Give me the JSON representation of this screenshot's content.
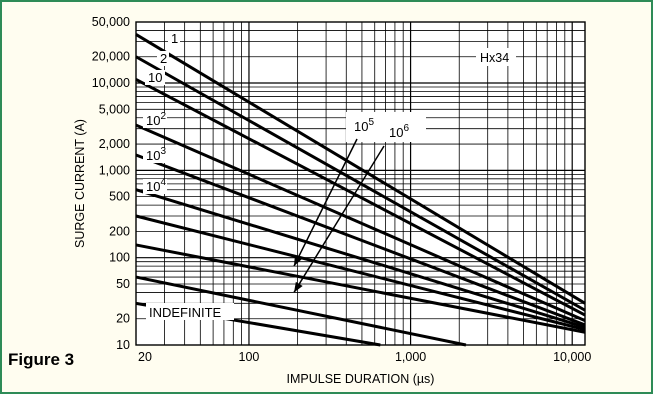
{
  "figure_label": "Figure 3",
  "chart_data": {
    "type": "line",
    "title": "",
    "model_label": "Hx34",
    "xlabel": "IMPULSE DURATION (µs)",
    "ylabel": "SURGE CURRENT (A)",
    "xscale": "log",
    "yscale": "log",
    "xlim": [
      20,
      12000
    ],
    "ylim": [
      10,
      50000
    ],
    "grid": true,
    "x_tick_labels": [
      {
        "value": 20,
        "label": "20"
      },
      {
        "value": 100,
        "label": "100"
      },
      {
        "value": 1000,
        "label": "1,000"
      },
      {
        "value": 10000,
        "label": "10,000"
      }
    ],
    "y_tick_labels": [
      {
        "value": 50000,
        "label": "50,000"
      },
      {
        "value": 20000,
        "label": "20,000"
      },
      {
        "value": 10000,
        "label": "10,000"
      },
      {
        "value": 5000,
        "label": "5,000"
      },
      {
        "value": 2000,
        "label": "2,000"
      },
      {
        "value": 1000,
        "label": "1,000"
      },
      {
        "value": 500,
        "label": "500"
      },
      {
        "value": 200,
        "label": "200"
      },
      {
        "value": 100,
        "label": "100"
      },
      {
        "value": 50,
        "label": "50"
      },
      {
        "value": 20,
        "label": "20"
      },
      {
        "value": 10,
        "label": "10"
      }
    ],
    "series": [
      {
        "label": "1",
        "points": [
          [
            20,
            36000
          ],
          [
            12000,
            30
          ]
        ]
      },
      {
        "label": "2",
        "points": [
          [
            20,
            20000
          ],
          [
            12000,
            25
          ]
        ]
      },
      {
        "label": "10",
        "points": [
          [
            20,
            11000
          ],
          [
            12000,
            22
          ]
        ]
      },
      {
        "label": "10",
        "label_exp": "2",
        "points": [
          [
            20,
            3300
          ],
          [
            12000,
            19
          ]
        ]
      },
      {
        "label": "10",
        "label_exp": "3",
        "points": [
          [
            20,
            1500
          ],
          [
            12000,
            17
          ]
        ]
      },
      {
        "label": "10",
        "label_exp": "4",
        "points": [
          [
            20,
            600
          ],
          [
            12000,
            16
          ]
        ]
      },
      {
        "label": "10",
        "label_exp": "5",
        "points": [
          [
            20,
            300
          ],
          [
            12000,
            15
          ]
        ]
      },
      {
        "label": "10",
        "label_exp": "6",
        "points": [
          [
            20,
            140
          ],
          [
            12000,
            14
          ]
        ]
      },
      {
        "label": "",
        "points": [
          [
            20,
            60
          ],
          [
            2200,
            10
          ]
        ]
      },
      {
        "label": "INDEFINITE",
        "points": [
          [
            20,
            30
          ],
          [
            650,
            10
          ]
        ]
      }
    ],
    "annotations": [
      {
        "text": "10",
        "exp": "5",
        "arrow_to": [
          190,
          80
        ]
      },
      {
        "text": "10",
        "exp": "6",
        "arrow_to": [
          190,
          40
        ]
      }
    ]
  }
}
